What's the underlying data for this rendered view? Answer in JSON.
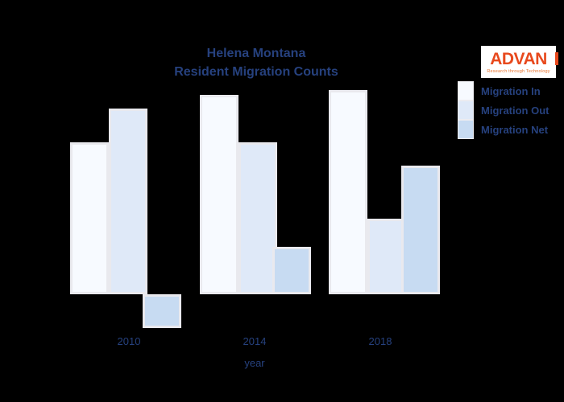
{
  "colors": {
    "background": "#000000",
    "text": "#26417e",
    "bar_border": "#e9e9ee",
    "logo_accent": "#e8491d",
    "logo_background": "#ffffff"
  },
  "logo": {
    "text": "ADVAN",
    "tagline": "Research through Technology"
  },
  "chart_data": {
    "type": "bar",
    "title": "Helena Montana",
    "subtitle": "Resident Migration Counts",
    "xlabel": "year",
    "ylabel": "",
    "categories": [
      "2010",
      "2014",
      "2018"
    ],
    "series": [
      {
        "name": "Migration In",
        "color": "#f7faff",
        "values": [
          189,
          248,
          254
        ]
      },
      {
        "name": "Migration Out",
        "color": "#dfe9f8",
        "values": [
          231,
          189,
          94
        ]
      },
      {
        "name": "Migration Net",
        "color": "#c7dbf2",
        "values": [
          -42,
          59,
          160
        ]
      }
    ],
    "value_units": "relative (no y-axis shown; values estimated from bar heights in px)",
    "ylim": [
      -50,
      270
    ],
    "grid": false,
    "y_axis_visible": false,
    "legend_position": "top-right"
  }
}
